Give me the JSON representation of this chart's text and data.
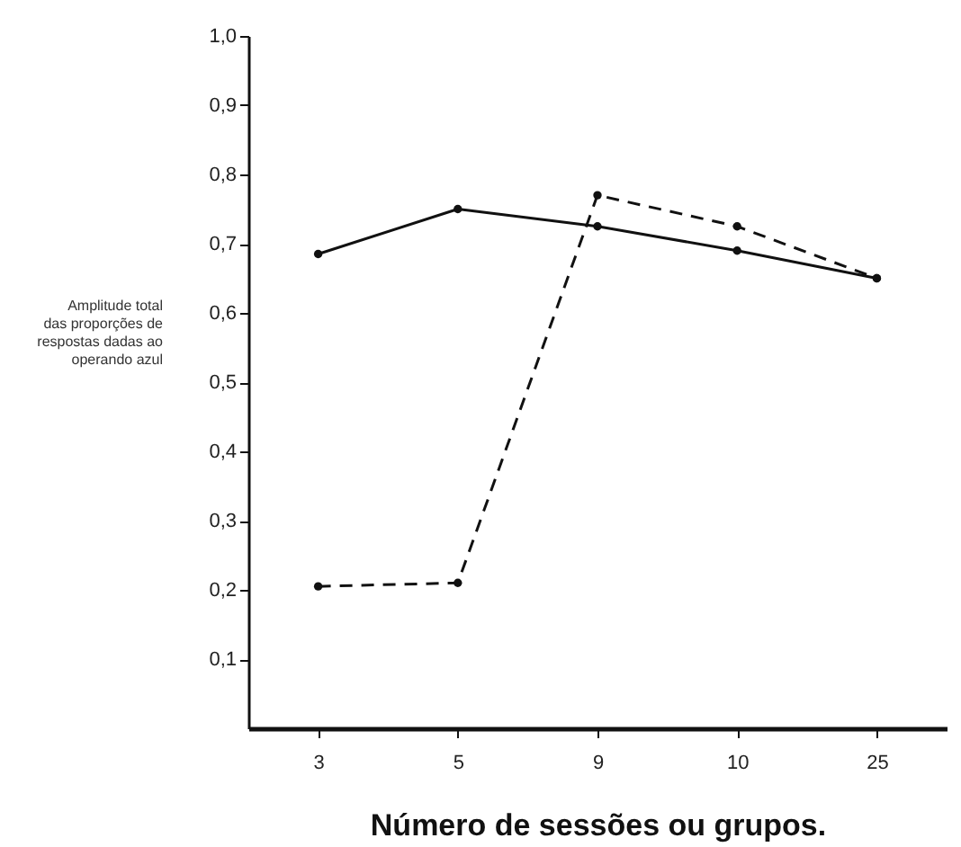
{
  "chart_data": {
    "type": "line",
    "xlabel": "Número de sessões ou grupos.",
    "ylabel": "Amplitude total das proporções de respostas dadas ao operando azul",
    "categories": [
      "3",
      "5",
      "9",
      "10",
      "25"
    ],
    "series": [
      {
        "color": "#111111",
        "line_style": "solid",
        "values": [
          0.685,
          0.75,
          0.725,
          0.69,
          0.65
        ]
      },
      {
        "color": "#111111",
        "line_style": "dashed",
        "values": [
          0.205,
          0.21,
          0.77,
          0.725,
          0.65
        ]
      }
    ],
    "ylim": [
      0,
      1
    ],
    "yticks": [
      {
        "value": 0.1,
        "label": "0,1"
      },
      {
        "value": 0.2,
        "label": "0,2"
      },
      {
        "value": 0.3,
        "label": "0,3"
      },
      {
        "value": 0.4,
        "label": "0,4"
      },
      {
        "value": 0.5,
        "label": "0,5"
      },
      {
        "value": 0.6,
        "label": "0,6"
      },
      {
        "value": 0.7,
        "label": "0,7"
      },
      {
        "value": 0.8,
        "label": "0,8"
      },
      {
        "value": 0.9,
        "label": "0,9"
      },
      {
        "value": 1.0,
        "label": "1,0"
      }
    ],
    "grid": false,
    "legend": false,
    "marker": "circle"
  }
}
